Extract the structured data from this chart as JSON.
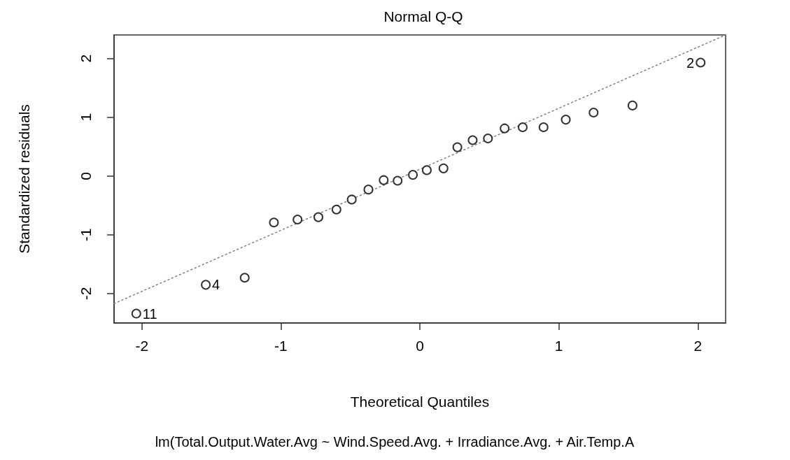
{
  "chart_data": {
    "type": "scatter",
    "title": "Normal Q-Q",
    "xlabel": "Theoretical Quantiles",
    "ylabel": "Standardized residuals",
    "xlim": [
      -2.2,
      2.2
    ],
    "ylim": [
      -2.5,
      2.4
    ],
    "xticks": [
      -2,
      -1,
      0,
      1,
      2
    ],
    "yticks": [
      -2,
      -1,
      0,
      1,
      2
    ],
    "grid": false,
    "series": [
      {
        "type": "scatter",
        "color": "#000000",
        "marker": "circle",
        "x": [
          -2.04,
          -1.54,
          -1.26,
          -1.05,
          -0.88,
          -0.73,
          -0.6,
          -0.49,
          -0.37,
          -0.26,
          -0.16,
          -0.05,
          0.05,
          0.17,
          0.27,
          0.38,
          0.49,
          0.61,
          0.74,
          0.89,
          1.05,
          1.25,
          1.53,
          2.02
        ],
        "values": [
          -2.34,
          -1.85,
          -1.73,
          -0.79,
          -0.74,
          -0.7,
          -0.57,
          -0.4,
          -0.23,
          -0.07,
          -0.08,
          0.02,
          0.1,
          0.13,
          0.49,
          0.61,
          0.64,
          0.81,
          0.83,
          0.83,
          0.96,
          1.08,
          1.2,
          1.93
        ]
      },
      {
        "type": "line",
        "color": "#808080",
        "marker": "none",
        "line_style": "dotted",
        "x": [
          -2.2,
          2.2
        ],
        "values": [
          -2.17,
          2.4
        ]
      }
    ],
    "annotations": [
      {
        "text": "11",
        "x": -2.04,
        "y": -2.34
      },
      {
        "text": "4",
        "x": -1.54,
        "y": -1.85
      },
      {
        "text": "2",
        "x": 2.02,
        "y": 1.93
      },
      "lm(Total.Output.Water.Avg ~ Wind.Speed.Avg. + Irradiance.Avg. + Air.Temp.A"
    ]
  }
}
